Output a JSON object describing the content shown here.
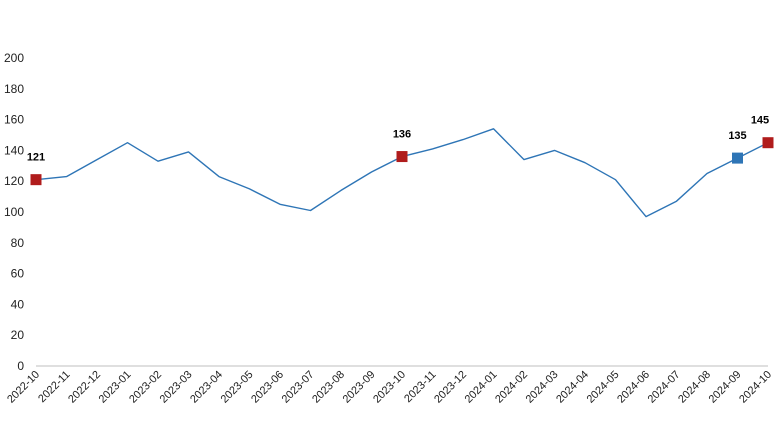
{
  "chart_data": {
    "type": "line",
    "title": "",
    "xlabel": "",
    "ylabel": "",
    "ylim": [
      0,
      200
    ],
    "yticks": [
      0,
      20,
      40,
      60,
      80,
      100,
      120,
      140,
      160,
      180,
      200
    ],
    "grid": false,
    "legend": "none",
    "x": [
      "2022-10",
      "2022-11",
      "2022-12",
      "2023-01",
      "2023-02",
      "2023-03",
      "2023-04",
      "2023-05",
      "2023-06",
      "2023-07",
      "2023-08",
      "2023-09",
      "2023-10",
      "2023-11",
      "2023-12",
      "2024-01",
      "2024-02",
      "2024-03",
      "2024-04",
      "2024-05",
      "2024-06",
      "2024-07",
      "2024-08",
      "2024-09",
      "2024-10"
    ],
    "series": [
      {
        "values": [
          121,
          123,
          134,
          145,
          133,
          139,
          123,
          115,
          105,
          101,
          114,
          126,
          136,
          141,
          147,
          154,
          134,
          140,
          132,
          121,
          97,
          107,
          125,
          135,
          145
        ]
      }
    ],
    "line_color": "#2e75b6",
    "highlights": [
      {
        "x": "2022-10",
        "value": 121,
        "label": "121",
        "color": "#b01c1c"
      },
      {
        "x": "2023-10",
        "value": 136,
        "label": "136",
        "color": "#b01c1c"
      },
      {
        "x": "2024-09",
        "value": 135,
        "label": "135",
        "color": "#2e75b6"
      },
      {
        "x": "2024-10",
        "value": 145,
        "label": "145",
        "color": "#b01c1c"
      }
    ]
  }
}
